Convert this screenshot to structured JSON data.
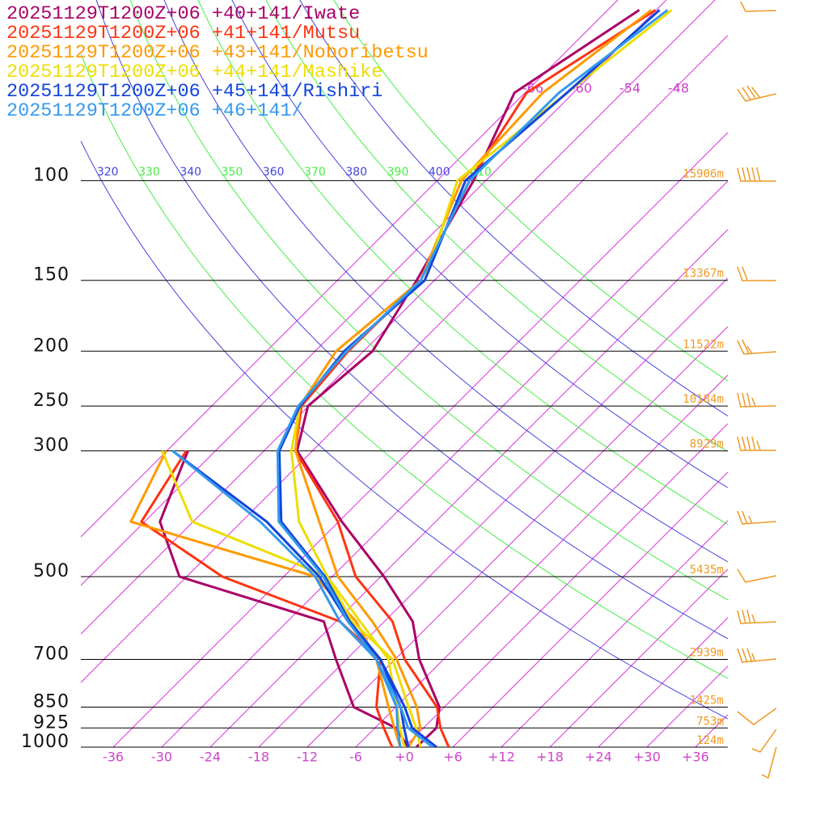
{
  "chart_data": {
    "type": "skewt",
    "xlim": [
      -40,
      40
    ],
    "ylim": [
      1000,
      48
    ],
    "log_scale": true,
    "xticks": [
      -36,
      -30,
      -24,
      -18,
      -12,
      -6,
      {
        "value": 0,
        "label": "+0"
      },
      {
        "value": 6,
        "label": "+6"
      },
      {
        "value": 12,
        "label": "+12"
      },
      {
        "value": 18,
        "label": "+18"
      },
      {
        "value": 24,
        "label": "+24"
      },
      {
        "value": 30,
        "label": "+30"
      },
      {
        "value": 36,
        "label": "+36"
      }
    ],
    "isotherm_labels": [
      -66,
      -60,
      -54,
      -48
    ],
    "isotherm_color": "#dd33dd",
    "yticks": [
      100,
      150,
      200,
      250,
      300,
      500,
      700,
      850,
      925,
      1000
    ],
    "height_labels": [
      "15906m",
      "13367m",
      "11522m",
      "10184m",
      "8929m",
      "5435m",
      "2939m",
      "1425m",
      "753m",
      "124m"
    ],
    "theta_labels": [
      320,
      330,
      340,
      350,
      360,
      370,
      380,
      390,
      400,
      410
    ],
    "theta_colors": [
      "#4444dd",
      "#44ee44",
      "#4444dd",
      "#44ee44",
      "#4444dd",
      "#44ee44",
      "#4444dd",
      "#44ee44",
      "#4444dd",
      "#44ee44"
    ],
    "series": [
      {
        "name": "20251129T1200Z+06 +40+141/Iwate",
        "color": "#aa0066",
        "pressure": [
          1000,
          925,
          850,
          700,
          600,
          500,
          400,
          300,
          250,
          200,
          150,
          100,
          70,
          50
        ],
        "temperature": [
          1.5,
          1.6,
          -0.6,
          -9,
          -14.5,
          -23.6,
          -35.6,
          -49.9,
          -54.1,
          -52.9,
          -56.2,
          -61.5,
          -67.3,
          -62.1
        ],
        "dewpoint_pressure": [
          1000,
          925,
          850,
          700,
          600,
          500,
          400,
          300
        ],
        "dewpoint": [
          0.5,
          -3.4,
          -11.2,
          -19.3,
          -25.5,
          -48.9,
          -58.1,
          -63.4
        ]
      },
      {
        "name": "20251129T1200Z+06 +41+141/Mutsu",
        "color": "#ff3311",
        "pressure": [
          1000,
          925,
          850,
          700,
          600,
          500,
          400,
          300,
          250,
          200,
          150,
          100,
          70,
          50
        ],
        "temperature": [
          5.5,
          2.1,
          -0.9,
          -10.8,
          -17,
          -27.1,
          -36.1,
          -50.1,
          -54.9,
          -55.9,
          -55.7,
          -62,
          -65.8,
          -60.1
        ],
        "dewpoint_pressure": [
          1000,
          925,
          850,
          700,
          600,
          500,
          400,
          300
        ],
        "dewpoint": [
          -1.5,
          -4.9,
          -8.4,
          -13.8,
          -23.5,
          -43.6,
          -60.4,
          -63.6
        ]
      },
      {
        "name": "20251129T1200Z+06 +43+141/Noboribetsu",
        "color": "#ff9900",
        "pressure": [
          1000,
          925,
          850,
          700,
          600,
          500,
          400,
          300,
          250,
          200,
          150,
          100,
          70,
          50
        ],
        "temperature": [
          0.5,
          -0.4,
          -3.4,
          -11.8,
          -19.5,
          -29.3,
          -38.4,
          -50.1,
          -55.1,
          -57.4,
          -55.7,
          -63,
          -63.8,
          -60.6
        ],
        "dewpoint_pressure": [
          1000,
          925,
          850,
          700,
          600,
          500,
          400,
          300
        ],
        "dewpoint": [
          -0.5,
          -3.6,
          -6.9,
          -14.3,
          -21.5,
          -32.1,
          -61.7,
          -66.1
        ]
      },
      {
        "name": "20251129T1200Z+06 +44+141/Mashike",
        "color": "#eedd00",
        "pressure": [
          1000,
          925,
          850,
          700,
          600,
          500,
          400,
          300,
          250,
          200,
          150,
          100,
          70,
          50
        ],
        "temperature": [
          2,
          -0.9,
          -4.4,
          -12.3,
          -22,
          -30.6,
          -40.9,
          -50.6,
          -55.1,
          -56.4,
          -55.2,
          -63.5,
          -60.8,
          -58.1
        ],
        "dewpoint_pressure": [
          1000,
          925,
          850,
          700,
          600,
          500,
          400,
          300
        ],
        "dewpoint": [
          0,
          -2.9,
          -5.9,
          -12.8,
          -21,
          -30.6,
          -54.1,
          -66.6
        ]
      },
      {
        "name": "20251129T1200Z+06 +45+141/Rishiri",
        "color": "#1144dd",
        "pressure": [
          1000,
          925,
          850,
          700,
          600,
          500,
          400,
          300,
          250,
          200,
          150,
          100,
          70,
          50
        ],
        "temperature": [
          4,
          -1.4,
          -4.9,
          -13.8,
          -22.3,
          -30.9,
          -43.1,
          -52.1,
          -55.1,
          -56.4,
          -55.2,
          -62.5,
          -60.8,
          -59.6
        ],
        "dewpoint_pressure": [
          1000,
          925,
          850,
          700,
          600,
          500,
          400,
          300
        ],
        "dewpoint": [
          0.5,
          -2.4,
          -5.4,
          -13.8,
          -22.5,
          -31.6,
          -44.9,
          -65.3
        ]
      },
      {
        "name": "20251129T1200Z+06 +46+141/",
        "color": "#3399ee",
        "pressure": [
          1000,
          925,
          850,
          700,
          600,
          500,
          400,
          300,
          250,
          200,
          150,
          100,
          70,
          50
        ],
        "temperature": [
          3.5,
          -1.9,
          -5.4,
          -14.3,
          -22.5,
          -31.1,
          -43.4,
          -52.3,
          -55.3,
          -56.1,
          -55.7,
          -62,
          -61.8,
          -58.6
        ],
        "dewpoint_pressure": [
          1000,
          925,
          850,
          700,
          600,
          500,
          400,
          300
        ],
        "dewpoint": [
          -0.5,
          -3.2,
          -5.9,
          -14.3,
          -23.5,
          -32.1,
          -45.7,
          -65.3
        ]
      }
    ]
  }
}
